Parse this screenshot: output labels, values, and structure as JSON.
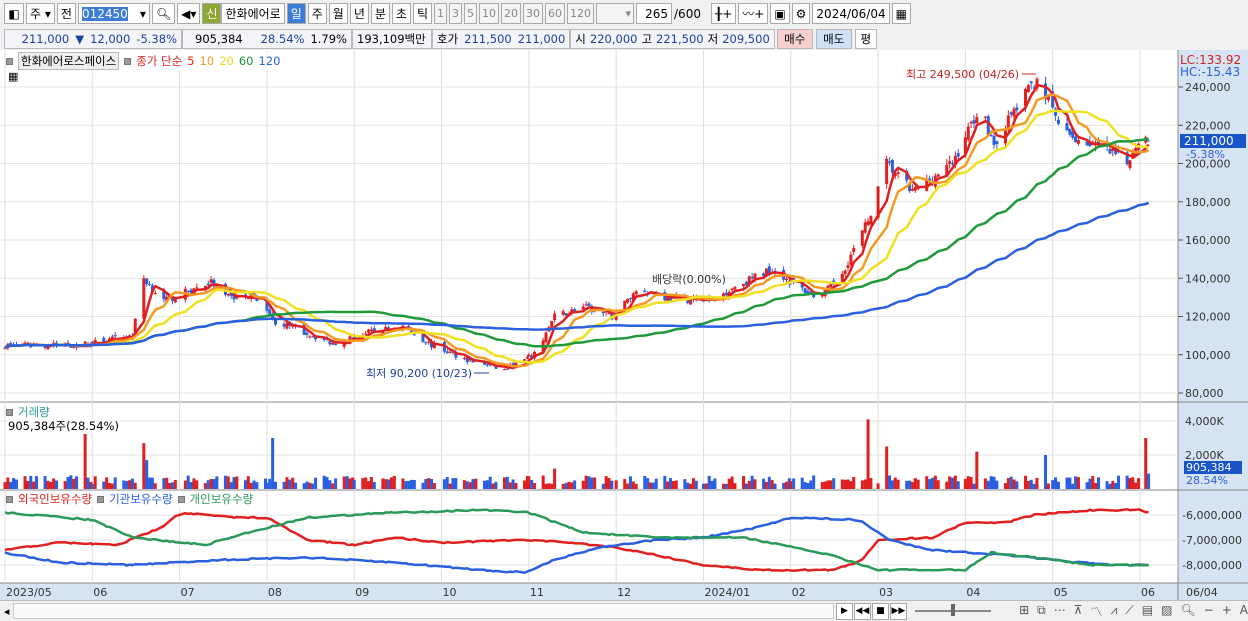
{
  "toolbar": {
    "period": "주",
    "prev": "전",
    "code": "012450",
    "badge": "신",
    "name": "한화에어로",
    "tabs": [
      "일",
      "주",
      "월",
      "년",
      "분",
      "초",
      "틱"
    ],
    "active_tab": "일",
    "intervals": [
      "1",
      "3",
      "5",
      "10",
      "20",
      "30",
      "60",
      "120"
    ],
    "count": "265",
    "max_count": "/600",
    "date": "2024/06/04"
  },
  "quote": {
    "price": "211,000",
    "arrow": "▼",
    "change": "12,000",
    "pct": "-5.38%",
    "volume": "905,384",
    "vol_ratio": "28.54%",
    "turnover": "1.79%",
    "amount": "193,109백만",
    "ask_label": "호가",
    "ask": "211,500",
    "bid": "211,000",
    "open_label": "시",
    "open": "220,000",
    "high_label": "고",
    "high": "221,500",
    "low_label": "저",
    "low": "209,500",
    "buy": "매수",
    "sell": "매도",
    "avg": "평"
  },
  "main": {
    "stock_label": "한화에어로스페이스",
    "ma_label": "종가 단순",
    "ma": [
      {
        "p": "5",
        "color": "#e02020"
      },
      {
        "p": "10",
        "color": "#f59a20"
      },
      {
        "p": "20",
        "color": "#f0e020"
      },
      {
        "p": "60",
        "color": "#1f9a3a"
      },
      {
        "p": "120",
        "color": "#2a5fe0"
      }
    ],
    "lc": "LC:133.92",
    "hc": "HC:-15.43",
    "price_tag": "211,000",
    "pct_tag": "-5.38%",
    "y_ticks": [
      "240,000",
      "220,000",
      "200,000",
      "180,000",
      "160,000",
      "140,000",
      "120,000",
      "100,000",
      "80,000"
    ],
    "high_note": "최고 249,500 (04/26)",
    "low_note": "최저 90,200 (10/23)",
    "div_note": "배당락(0.00%)"
  },
  "volume": {
    "label": "거래량",
    "info": "905,384주(28.54%)",
    "y_ticks": [
      "4,000K",
      "2,000K"
    ],
    "tag": "905,384",
    "tag2": "28.54%"
  },
  "holdings": {
    "labels": [
      {
        "t": "외국인보유수량",
        "color": "#e02020"
      },
      {
        "t": "기관보유수량",
        "color": "#2a5fe0"
      },
      {
        "t": "개인보유수량",
        "color": "#2a9a5a"
      }
    ],
    "y_ticks": [
      "-6,000,000",
      "-7,000,000",
      "-8,000,000"
    ]
  },
  "x_labels": [
    "2023/05",
    "06",
    "07",
    "08",
    "09",
    "10",
    "11",
    "12",
    "2024/01",
    "02",
    "03",
    "04",
    "05",
    "06"
  ],
  "last_date": "06/04",
  "price_path": [
    [
      "2023-05-01",
      105000
    ],
    [
      "2023-05-27",
      105000
    ],
    [
      "2023-06-15",
      110000
    ],
    [
      "2023-06-19",
      140000
    ],
    [
      "2023-06-26",
      128000
    ],
    [
      "2023-07-12",
      138000
    ],
    [
      "2023-07-17",
      130000
    ],
    [
      "2023-07-30",
      130000
    ],
    [
      "2023-08-03",
      118000
    ],
    [
      "2023-08-17",
      110000
    ],
    [
      "2023-08-24",
      106000
    ],
    [
      "2023-09-07",
      112000
    ],
    [
      "2023-09-18",
      115000
    ],
    [
      "2023-09-28",
      105000
    ],
    [
      "2023-10-09",
      98000
    ],
    [
      "2023-10-23",
      92000
    ],
    [
      "2023-11-03",
      100000
    ],
    [
      "2023-11-10",
      120000
    ],
    [
      "2023-11-20",
      125000
    ],
    [
      "2023-11-30",
      120000
    ],
    [
      "2023-12-09",
      135000
    ],
    [
      "2023-12-18",
      130000
    ],
    [
      "2024-01-04",
      128000
    ],
    [
      "2024-01-11",
      135000
    ],
    [
      "2024-01-25",
      145000
    ],
    [
      "2024-02-04",
      135000
    ],
    [
      "2024-02-11",
      130000
    ],
    [
      "2024-02-18",
      140000
    ],
    [
      "2024-02-28",
      170000
    ],
    [
      "2024-03-04",
      200000
    ],
    [
      "2024-03-13",
      185000
    ],
    [
      "2024-03-27",
      200000
    ],
    [
      "2024-04-06",
      230000
    ],
    [
      "2024-04-11",
      210000
    ],
    [
      "2024-04-17",
      225000
    ],
    [
      "2024-04-26",
      245000
    ],
    [
      "2024-05-05",
      215000
    ],
    [
      "2024-05-15",
      210000
    ],
    [
      "2024-05-22",
      205000
    ],
    [
      "2024-05-27",
      200000
    ],
    [
      "2024-06-01",
      215000
    ],
    [
      "2024-06-04",
      211000
    ]
  ],
  "volume_spikes": [
    [
      "2023-05-29",
      4000
    ],
    [
      "2023-06-19",
      2700
    ],
    [
      "2023-06-20",
      1700
    ],
    [
      "2023-08-03",
      3000
    ],
    [
      "2023-11-10",
      1200
    ],
    [
      "2024-02-28",
      4100
    ],
    [
      "2024-03-04",
      2500
    ],
    [
      "2024-04-05",
      2200
    ],
    [
      "2024-04-29",
      2000
    ],
    [
      "2024-06-03",
      3000
    ],
    [
      "2024-06-04",
      905
    ]
  ],
  "foreign": [
    [
      "2023-05-01",
      -7.4
    ],
    [
      "2023-05-20",
      -7.1
    ],
    [
      "2023-06-10",
      -7.2
    ],
    [
      "2023-06-25",
      -6.5
    ],
    [
      "2023-07-01",
      -5.9
    ],
    [
      "2023-07-20",
      -6.1
    ],
    [
      "2023-08-01",
      -6.1
    ],
    [
      "2023-08-15",
      -7.0
    ],
    [
      "2023-09-01",
      -7.2
    ],
    [
      "2023-09-15",
      -6.9
    ],
    [
      "2023-10-01",
      -7.1
    ],
    [
      "2023-11-01",
      -7.0
    ],
    [
      "2023-11-15",
      -7.1
    ],
    [
      "2023-12-01",
      -7.3
    ],
    [
      "2023-12-15",
      -7.6
    ],
    [
      "2024-01-01",
      -8.0
    ],
    [
      "2024-01-20",
      -8.2
    ],
    [
      "2024-02-15",
      -8.2
    ],
    [
      "2024-02-25",
      -7.9
    ],
    [
      "2024-03-01",
      -7.0
    ],
    [
      "2024-03-20",
      -6.9
    ],
    [
      "2024-04-01",
      -6.3
    ],
    [
      "2024-04-15",
      -6.3
    ],
    [
      "2024-04-25",
      -6.0
    ],
    [
      "2024-05-15",
      -5.8
    ],
    [
      "2024-06-01",
      -5.8
    ],
    [
      "2024-06-04",
      -5.9
    ]
  ],
  "institution": [
    [
      "2023-05-01",
      -7.5
    ],
    [
      "2023-05-20",
      -7.9
    ],
    [
      "2023-06-15",
      -8.0
    ],
    [
      "2023-07-15",
      -7.8
    ],
    [
      "2023-08-15",
      -7.7
    ],
    [
      "2023-09-15",
      -7.9
    ],
    [
      "2023-10-15",
      -8.2
    ],
    [
      "2023-10-30",
      -8.3
    ],
    [
      "2023-11-10",
      -7.8
    ],
    [
      "2023-11-25",
      -7.3
    ],
    [
      "2023-12-15",
      -7.0
    ],
    [
      "2024-01-01",
      -6.9
    ],
    [
      "2024-01-20",
      -6.5
    ],
    [
      "2024-02-01",
      -6.1
    ],
    [
      "2024-02-25",
      -6.2
    ],
    [
      "2024-03-05",
      -7.0
    ],
    [
      "2024-03-20",
      -7.4
    ],
    [
      "2024-04-15",
      -7.6
    ],
    [
      "2024-05-01",
      -7.8
    ],
    [
      "2024-05-20",
      -8.0
    ],
    [
      "2024-06-04",
      -8.0
    ]
  ],
  "individual": [
    [
      "2023-05-01",
      -5.9
    ],
    [
      "2023-06-01",
      -6.2
    ],
    [
      "2023-06-15",
      -6.9
    ],
    [
      "2023-07-10",
      -7.2
    ],
    [
      "2023-07-25",
      -6.7
    ],
    [
      "2023-08-15",
      -6.1
    ],
    [
      "2023-09-15",
      -5.9
    ],
    [
      "2023-10-15",
      -5.8
    ],
    [
      "2023-11-01",
      -5.9
    ],
    [
      "2023-11-20",
      -6.7
    ],
    [
      "2023-12-15",
      -6.9
    ],
    [
      "2024-01-15",
      -6.9
    ],
    [
      "2024-02-15",
      -7.6
    ],
    [
      "2024-03-01",
      -8.2
    ],
    [
      "2024-04-01",
      -8.2
    ],
    [
      "2024-04-10",
      -7.5
    ],
    [
      "2024-04-25",
      -7.7
    ],
    [
      "2024-05-15",
      -8.0
    ],
    [
      "2024-06-04",
      -8.0
    ]
  ],
  "colors": {
    "up": "#e02020",
    "down": "#2a5fe0",
    "axis_bg": "#d6e3f2",
    "tag": "#1a55c8"
  }
}
